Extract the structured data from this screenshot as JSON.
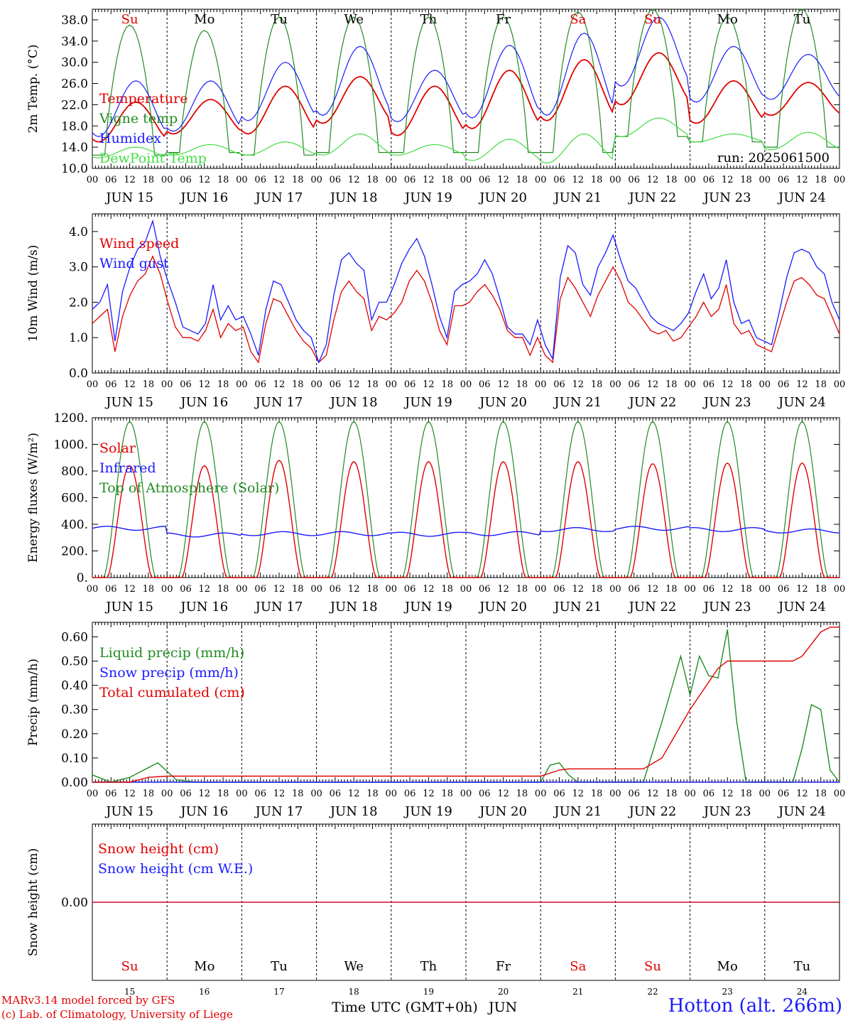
{
  "chart_data": {
    "type": "line",
    "days": [
      "15",
      "16",
      "17",
      "18",
      "19",
      "20",
      "21",
      "22",
      "23",
      "24"
    ],
    "date_labels": [
      "JUN 15",
      "JUN 16",
      "JUN 17",
      "JUN 18",
      "JUN 19",
      "JUN 20",
      "JUN 21",
      "JUN 22",
      "JUN 23",
      "JUN 24"
    ],
    "weekdays": [
      "Su",
      "Mo",
      "Tu",
      "We",
      "Th",
      "Fr",
      "Sa",
      "Su",
      "Mo",
      "Tu"
    ],
    "weekend_color": "#e00000",
    "hour_ticks": [
      "00",
      "06",
      "12",
      "18"
    ],
    "hour_end": "00",
    "run_label": "run: 2025061500",
    "panels": [
      {
        "id": "temp",
        "ylabel": "2m Temp. (°C)",
        "ylim": [
          10,
          40
        ],
        "yticks": [
          "10.0",
          "14.0",
          "18.0",
          "22.0",
          "26.0",
          "30.0",
          "34.0",
          "38.0"
        ],
        "ytick_values": [
          10,
          14,
          18,
          22,
          26,
          30,
          34,
          38
        ],
        "series": [
          {
            "name": "Temperature",
            "color": "#e00000",
            "min": [
              15.0,
              16.5,
              16.5,
              18.5,
              16.2,
              17.5,
              19.0,
              22.0,
              18.5,
              20.0
            ],
            "max": [
              22.5,
              23.0,
              25.5,
              27.3,
              25.5,
              28.5,
              30.5,
              31.8,
              26.5,
              26.2
            ]
          },
          {
            "name": "Vigne temp",
            "color": "#228b22",
            "min": [
              12.5,
              13.0,
              12.5,
              13.0,
              13.0,
              13.0,
              13.0,
              16.0,
              15.0,
              14.0
            ],
            "max": [
              37.0,
              36.0,
              38.5,
              38.5,
              38.5,
              38.5,
              39.5,
              40.0,
              38.5,
              40.0
            ]
          },
          {
            "name": "Humidex",
            "color": "#1a1aff",
            "min": [
              16.0,
              17.0,
              19.0,
              20.0,
              18.8,
              19.5,
              20.0,
              25.5,
              22.5,
              23.0
            ],
            "max": [
              26.5,
              26.5,
              30.0,
              33.0,
              28.5,
              33.2,
              35.5,
              38.5,
              33.0,
              31.5
            ]
          },
          {
            "name": "DewPoint Temp",
            "color": "#44dd44",
            "min": [
              12.0,
              12.5,
              12.5,
              12.5,
              12.5,
              11.5,
              11.0,
              16.0,
              15.0,
              13.5
            ],
            "max": [
              14.0,
              14.5,
              15.0,
              16.5,
              14.5,
              15.5,
              16.5,
              19.5,
              16.5,
              16.8
            ]
          }
        ]
      },
      {
        "id": "wind",
        "ylabel": "10m Wind (m/s)",
        "ylim": [
          0,
          4.5
        ],
        "yticks": [
          "0.0",
          "1.0",
          "2.0",
          "3.0",
          "4.0"
        ],
        "ytick_values": [
          0,
          1,
          2,
          3,
          4
        ],
        "series": [
          {
            "name": "Wind speed",
            "color": "#e00000",
            "values": [
              1.4,
              1.6,
              1.8,
              0.6,
              1.6,
              2.2,
              2.6,
              2.8,
              3.3,
              2.8,
              2.0,
              1.3,
              1.0,
              1.0,
              0.9,
              1.2,
              1.8,
              1.0,
              1.4,
              1.2,
              1.3,
              0.6,
              0.3,
              1.4,
              2.1,
              2.0,
              1.6,
              1.2,
              0.9,
              0.7,
              0.3,
              0.5,
              1.5,
              2.3,
              2.6,
              2.3,
              2.1,
              1.2,
              1.6,
              1.5,
              1.7,
              2.0,
              2.6,
              2.9,
              2.6,
              2.0,
              1.2,
              0.8,
              1.9,
              1.9,
              2.0,
              2.3,
              2.5,
              2.2,
              1.8,
              1.2,
              1.0,
              1.0,
              0.5,
              1.0,
              0.5,
              0.3,
              2.1,
              2.7,
              2.4,
              2.0,
              1.6,
              2.2,
              2.6,
              3.0,
              2.6,
              2.0,
              1.8,
              1.5,
              1.2,
              1.1,
              1.2,
              0.9,
              1.0,
              1.3,
              1.6,
              2.0,
              1.6,
              1.8,
              2.5,
              1.4,
              1.1,
              1.2,
              0.8,
              0.7,
              0.6,
              1.3,
              2.0,
              2.6,
              2.7,
              2.5,
              2.2,
              2.1,
              1.6,
              1.1
            ]
          },
          {
            "name": "Wind gust",
            "color": "#1a1aff",
            "values": [
              1.8,
              2.0,
              2.5,
              0.9,
              2.3,
              3.0,
              3.5,
              3.7,
              4.3,
              3.3,
              2.6,
              2.0,
              1.3,
              1.2,
              1.1,
              1.4,
              2.5,
              1.5,
              1.9,
              1.5,
              1.6,
              1.1,
              0.5,
              1.8,
              2.6,
              2.5,
              2.0,
              1.5,
              1.2,
              1.0,
              0.3,
              0.8,
              2.2,
              3.2,
              3.4,
              3.1,
              2.9,
              1.5,
              2.0,
              2.0,
              2.5,
              3.1,
              3.5,
              3.8,
              3.3,
              2.5,
              1.6,
              1.0,
              2.3,
              2.5,
              2.6,
              2.8,
              3.2,
              2.8,
              2.1,
              1.3,
              1.1,
              1.1,
              0.8,
              1.5,
              0.8,
              0.4,
              2.7,
              3.6,
              3.4,
              2.5,
              2.2,
              3.0,
              3.4,
              3.9,
              3.2,
              2.6,
              2.4,
              2.0,
              1.6,
              1.4,
              1.3,
              1.2,
              1.4,
              1.7,
              2.3,
              2.8,
              2.1,
              2.4,
              3.2,
              2.0,
              1.4,
              1.5,
              1.0,
              0.9,
              0.8,
              1.7,
              2.7,
              3.4,
              3.5,
              3.4,
              3.0,
              2.8,
              2.0,
              1.5
            ]
          }
        ]
      },
      {
        "id": "energy",
        "ylabel": "Energy fluxes (W/m²)",
        "ylim": [
          0,
          1200
        ],
        "yticks": [
          "0.",
          "200.",
          "400.",
          "600.",
          "800.",
          "1000.",
          "1200."
        ],
        "ytick_values": [
          0,
          200,
          400,
          600,
          800,
          1000,
          1200
        ],
        "series": [
          {
            "name": "Solar",
            "color": "#e00000",
            "peaks": [
              840,
              840,
              880,
              870,
              870,
              870,
              870,
              855,
              860,
              860
            ]
          },
          {
            "name": "Infrared",
            "color": "#1a1aff",
            "daily": [
              370,
              320,
              330,
              330,
              325,
              330,
              360,
              370,
              360,
              350
            ]
          },
          {
            "name": "Top of Atmosphere (Solar)",
            "color": "#228b22",
            "peak": 1170
          }
        ]
      },
      {
        "id": "precip",
        "ylabel": "Precip (mm/h)",
        "ylim": [
          0,
          0.66
        ],
        "yticks": [
          "0.00",
          "0.10",
          "0.20",
          "0.30",
          "0.40",
          "0.50",
          "0.60"
        ],
        "ytick_values": [
          0,
          0.1,
          0.2,
          0.3,
          0.4,
          0.5,
          0.6
        ],
        "series": [
          {
            "name": "Liquid precip (mm/h)",
            "color": "#228b22",
            "points": [
              [
                0,
                0.03
              ],
              [
                6,
                0.0
              ],
              [
                12,
                0.02
              ],
              [
                21,
                0.08
              ],
              [
                27,
                0.01
              ],
              [
                33,
                0
              ],
              [
                144,
                0
              ],
              [
                147,
                0.07
              ],
              [
                150,
                0.08
              ],
              [
                153,
                0.03
              ],
              [
                156,
                0
              ],
              [
                177,
                0
              ],
              [
                183,
                0.25
              ],
              [
                189,
                0.52
              ],
              [
                192,
                0.36
              ],
              [
                195,
                0.52
              ],
              [
                198,
                0.44
              ],
              [
                201,
                0.43
              ],
              [
                204,
                0.63
              ],
              [
                207,
                0.25
              ],
              [
                210,
                0.0
              ],
              [
                213,
                0
              ],
              [
                225,
                0
              ],
              [
                228,
                0.14
              ],
              [
                231,
                0.32
              ],
              [
                234,
                0.3
              ],
              [
                237,
                0.05
              ],
              [
                240,
                0.0
              ],
              [
                240,
                0
              ],
              [
                240,
                0
              ]
            ]
          },
          {
            "name": "Snow precip (mm/h)",
            "color": "#1a1aff",
            "points": [
              [
                0,
                0
              ],
              [
                240,
                0
              ]
            ]
          },
          {
            "name": "Total cumulated (cm)",
            "color": "#e00000",
            "points": [
              [
                0,
                0.0
              ],
              [
                12,
                0.0
              ],
              [
                18,
                0.02
              ],
              [
                24,
                0.025
              ],
              [
                144,
                0.025
              ],
              [
                150,
                0.05
              ],
              [
                153,
                0.055
              ],
              [
                177,
                0.055
              ],
              [
                183,
                0.1
              ],
              [
                192,
                0.3
              ],
              [
                201,
                0.47
              ],
              [
                204,
                0.5
              ],
              [
                225,
                0.5
              ],
              [
                228,
                0.52
              ],
              [
                234,
                0.62
              ],
              [
                237,
                0.64
              ],
              [
                240,
                0.64
              ]
            ]
          }
        ]
      },
      {
        "id": "snow",
        "ylabel": "Snow height (cm)",
        "ylim": [
          -1,
          1
        ],
        "yticks": [
          "0.00"
        ],
        "ytick_values": [
          0
        ],
        "series": [
          {
            "name": "Snow height (cm)",
            "color": "#e00000",
            "points": [
              [
                0,
                0
              ],
              [
                240,
                0
              ]
            ]
          },
          {
            "name": "Snow height (cm W.E.)",
            "color": "#1a1aff",
            "points": [
              [
                0,
                0
              ],
              [
                240,
                0
              ]
            ]
          }
        ]
      }
    ],
    "xlabel": "Time UTC (GMT+0h)",
    "month": "JUN"
  },
  "footer": {
    "credit_line1": "MARv3.14 model forced by GFS",
    "credit_line2": "(c) Lab. of Climatology, University of Liege",
    "station": "Hotton (alt. 266m)"
  }
}
